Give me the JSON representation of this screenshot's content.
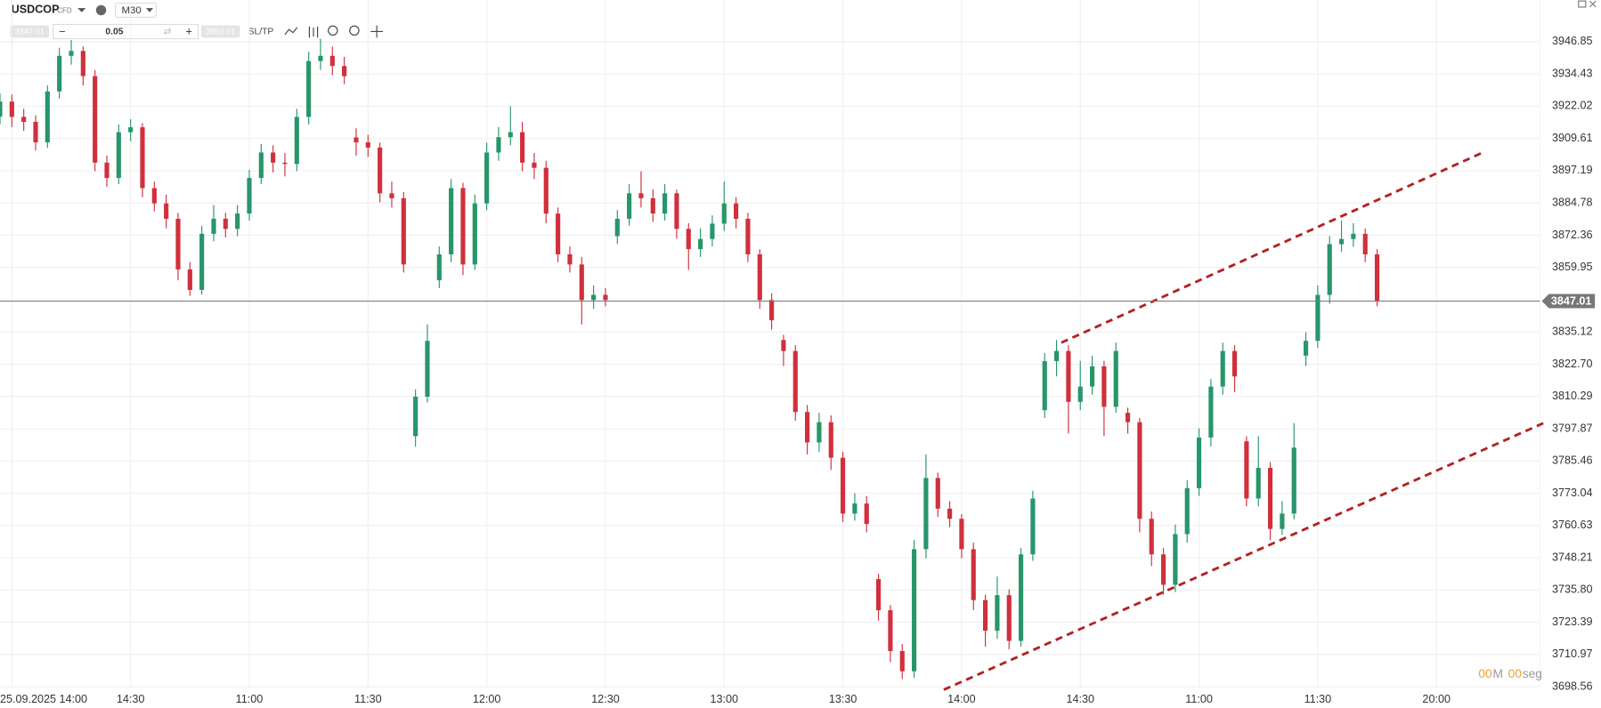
{
  "toolbar": {
    "symbol": "USDCOP",
    "symbol_type": "CFD",
    "timeframe": "M30",
    "sell_price": "3847.01",
    "lot": "0.05",
    "buy_price": "3850.01",
    "sltp": "SL/TP"
  },
  "timer": {
    "minutes": "00",
    "min_unit": "M",
    "seconds": "00",
    "sec_unit": "seg"
  },
  "chart_data": {
    "type": "candlestick",
    "up_color": "#27966b",
    "down_color": "#d0303d",
    "grid": true,
    "open": [
      3918.0,
      3923.8,
      3917.9,
      3916.0,
      3908.1,
      3927.7,
      3941.4,
      3943.3,
      3933.6,
      3900.3,
      3894.4,
      3912.0,
      3913.9,
      3890.5,
      3884.6,
      3878.7,
      3859.2,
      3851.3,
      3872.9,
      3878.7,
      3874.8,
      3880.7,
      3894.4,
      3904.2,
      3900.3,
      3899.8,
      3917.9,
      3939.4,
      3941.4,
      3937.5,
      3910.0,
      3908.1,
      3906.1,
      3888.5,
      3886.6,
      3795.0,
      3810.2,
      3855.0,
      3865.0,
      3890.5,
      3861.1,
      3884.6,
      3904.2,
      3910.1,
      3912.0,
      3900.3,
      3898.3,
      3880.7,
      3865.0,
      3861.1,
      3847.4,
      3849.4,
      3872.0,
      3878.7,
      3888.5,
      3886.6,
      3880.7,
      3888.5,
      3874.8,
      3867.0,
      3870.9,
      3876.8,
      3884.6,
      3878.7,
      3865.0,
      3847.4,
      3832.0,
      3827.8,
      3804.3,
      3792.6,
      3800.4,
      3786.7,
      3765.2,
      3769.1,
      3740.0,
      3728.0,
      3712.3,
      3704.5,
      3751.5,
      3778.9,
      3767.1,
      3763.2,
      3751.5,
      3731.9,
      3720.1,
      3733.8,
      3716.2,
      3749.5,
      3805.0,
      3823.9,
      3827.8,
      3808.2,
      3814.1,
      3821.9,
      3806.3,
      3804.0,
      3800.4,
      3763.2,
      3749.5,
      3737.8,
      3757.3,
      3775.0,
      3794.5,
      3814.1,
      3827.8,
      3793.0,
      3771.0,
      3782.8,
      3759.3,
      3765.2,
      3826.0,
      3831.7,
      3849.4,
      3868.9,
      3870.9,
      3872.9,
      3865.0
    ],
    "high": [
      3927.0,
      3926.5,
      3921.0,
      3918.5,
      3930.0,
      3944.5,
      3947.5,
      3945.0,
      3936.0,
      3903.0,
      3915.0,
      3917.0,
      3915.5,
      3893.0,
      3888.0,
      3881.0,
      3862.0,
      3876.0,
      3884.0,
      3881.0,
      3884.0,
      3897.5,
      3907.5,
      3907.0,
      3904.0,
      3921.0,
      3943.0,
      3948.0,
      3945.0,
      3941.0,
      3913.5,
      3911.0,
      3908.0,
      3893.0,
      3889.0,
      3813.0,
      3838.0,
      3868.0,
      3894.0,
      3892.5,
      3888.0,
      3908.0,
      3914.0,
      3922.0,
      3916.0,
      3904.0,
      3901.0,
      3883.0,
      3868.0,
      3864.0,
      3853.0,
      3852.0,
      3882.0,
      3892.0,
      3897.0,
      3890.0,
      3892.0,
      3890.0,
      3877.0,
      3875.0,
      3880.0,
      3893.0,
      3887.0,
      3881.0,
      3867.0,
      3850.0,
      3834.0,
      3830.0,
      3807.0,
      3804.0,
      3803.0,
      3789.0,
      3773.0,
      3772.0,
      3742.0,
      3730.0,
      3715.0,
      3755.0,
      3788.0,
      3781.0,
      3770.0,
      3765.0,
      3754.0,
      3734.0,
      3741.0,
      3736.0,
      3752.0,
      3774.0,
      3827.0,
      3832.0,
      3830.0,
      3824.0,
      3826.0,
      3824.0,
      3831.0,
      3806.0,
      3802.0,
      3766.0,
      3752.0,
      3761.0,
      3778.0,
      3798.0,
      3817.0,
      3831.0,
      3830.0,
      3795.0,
      3795.0,
      3785.0,
      3770.0,
      3800.0,
      3835.0,
      3853.0,
      3872.0,
      3878.0,
      3877.0,
      3875.0,
      3867.0
    ],
    "low": [
      3915.0,
      3914.0,
      3912.5,
      3905.0,
      3906.0,
      3925.0,
      3938.0,
      3930.0,
      3897.0,
      3891.0,
      3892.0,
      3908.5,
      3887.0,
      3881.5,
      3875.0,
      3855.0,
      3849.0,
      3849.5,
      3870.0,
      3871.5,
      3872.0,
      3878.0,
      3892.0,
      3896.5,
      3895.0,
      3897.0,
      3915.0,
      3936.0,
      3934.0,
      3930.5,
      3903.0,
      3902.5,
      3885.0,
      3883.0,
      3858.0,
      3791.0,
      3808.0,
      3852.0,
      3862.0,
      3857.0,
      3859.0,
      3882.0,
      3901.0,
      3907.0,
      3897.0,
      3894.0,
      3877.0,
      3862.0,
      3858.0,
      3838.0,
      3844.0,
      3845.0,
      3869.0,
      3876.0,
      3883.0,
      3877.5,
      3878.0,
      3871.0,
      3859.0,
      3864.0,
      3868.0,
      3874.0,
      3875.0,
      3862.0,
      3844.0,
      3836.0,
      3822.0,
      3801.0,
      3788.0,
      3789.0,
      3782.0,
      3762.0,
      3762.5,
      3758.0,
      3724.0,
      3708.0,
      3701.5,
      3702.0,
      3748.0,
      3764.0,
      3760.0,
      3748.0,
      3728.0,
      3714.0,
      3717.0,
      3713.0,
      3714.0,
      3747.0,
      3802.0,
      3818.0,
      3796.0,
      3805.0,
      3811.0,
      3795.0,
      3804.0,
      3796.0,
      3758.0,
      3745.0,
      3734.0,
      3735.0,
      3754.0,
      3772.0,
      3791.0,
      3811.0,
      3812.0,
      3768.0,
      3768.0,
      3755.0,
      3757.0,
      3763.0,
      3822.0,
      3829.0,
      3846.0,
      3866.0,
      3868.0,
      3862.0,
      3845.0
    ],
    "close": [
      3923.8,
      3917.9,
      3916.0,
      3908.1,
      3927.7,
      3941.4,
      3943.3,
      3933.6,
      3900.3,
      3894.4,
      3912.0,
      3913.9,
      3890.5,
      3884.6,
      3878.7,
      3859.2,
      3851.3,
      3872.9,
      3878.7,
      3874.8,
      3880.7,
      3894.4,
      3904.2,
      3900.3,
      3899.8,
      3917.9,
      3939.4,
      3941.4,
      3937.5,
      3933.6,
      3908.1,
      3906.1,
      3888.5,
      3886.6,
      3861.1,
      3810.2,
      3831.7,
      3865.0,
      3890.5,
      3861.1,
      3884.6,
      3904.2,
      3910.1,
      3912.0,
      3900.3,
      3898.3,
      3880.7,
      3865.0,
      3861.1,
      3847.4,
      3849.4,
      3847.4,
      3878.7,
      3888.5,
      3886.6,
      3880.7,
      3888.5,
      3874.8,
      3867.0,
      3870.9,
      3876.8,
      3884.6,
      3878.7,
      3865.0,
      3847.4,
      3839.6,
      3827.8,
      3804.3,
      3792.6,
      3800.4,
      3786.7,
      3765.2,
      3769.1,
      3761.2,
      3728.0,
      3712.3,
      3704.5,
      3751.5,
      3778.9,
      3767.1,
      3763.2,
      3751.5,
      3731.9,
      3720.1,
      3733.8,
      3716.2,
      3749.5,
      3771.0,
      3823.9,
      3827.8,
      3808.2,
      3814.1,
      3821.9,
      3806.3,
      3827.8,
      3800.4,
      3763.2,
      3749.5,
      3737.8,
      3757.3,
      3775.0,
      3794.5,
      3814.1,
      3827.8,
      3818.0,
      3771.0,
      3782.8,
      3759.3,
      3765.2,
      3790.6,
      3831.7,
      3849.4,
      3868.9,
      3870.9,
      3872.9,
      3865.0,
      3847.0
    ],
    "last_price": 3847.01,
    "last_price_color": "#777777",
    "trendlines": [
      {
        "color": "#b22222",
        "x": [
          89.4,
          125.1
        ],
        "y": [
          3831.0,
          3904.6
        ]
      },
      {
        "color": "#b22222",
        "x": [
          79.5,
          130.0
        ],
        "y": [
          3697.4,
          3800.0
        ]
      }
    ],
    "xlim": [
      0,
      129.7
    ],
    "ylim": [
      3698.2,
      3962.9
    ],
    "xticks": [
      {
        "value": 1,
        "label": "25.09.2025 14:00"
      },
      {
        "value": 11,
        "label": "14:30"
      },
      {
        "value": 21,
        "label": "11:00"
      },
      {
        "value": 31,
        "label": "11:30"
      },
      {
        "value": 41,
        "label": "12:00"
      },
      {
        "value": 51,
        "label": "12:30"
      },
      {
        "value": 61,
        "label": "13:00"
      },
      {
        "value": 71,
        "label": "13:30"
      },
      {
        "value": 81,
        "label": "14:00"
      },
      {
        "value": 91,
        "label": "14:30"
      },
      {
        "value": 101,
        "label": "11:00"
      },
      {
        "value": 111,
        "label": "11:30"
      },
      {
        "value": 121,
        "label": "20:00"
      }
    ],
    "yticks": [
      3946.85,
      3934.43,
      3922.02,
      3909.61,
      3897.19,
      3884.78,
      3872.36,
      3859.95,
      3835.12,
      {
        "value": 3822.7,
        "label": "3822.70"
      },
      3810.29,
      3797.87,
      3785.46,
      3773.04,
      3760.63,
      3748.21,
      {
        "value": 3735.8,
        "label": "3735.80"
      },
      3723.39,
      3710.97,
      3698.56
    ]
  }
}
